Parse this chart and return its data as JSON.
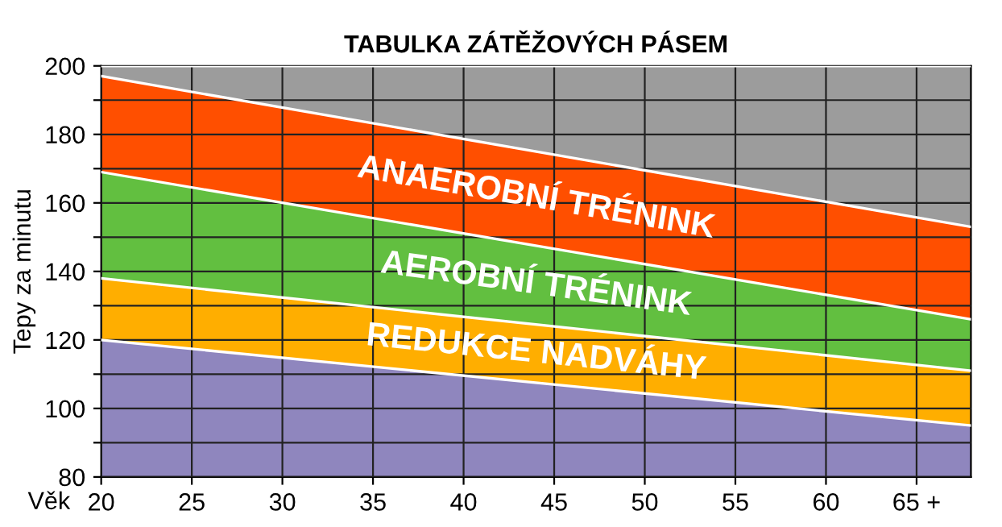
{
  "chart_data": {
    "type": "area",
    "title": "TABULKA ZÁTĚŽOVÝCH PÁSEM",
    "xlabel": "Věk",
    "ylabel": "Tepy za minutu",
    "legend": false,
    "grid": true,
    "xlim": [
      20,
      68
    ],
    "xticks": [
      20,
      25,
      30,
      35,
      40,
      45,
      50,
      55,
      60,
      {
        "value": 65,
        "label": "65 +"
      }
    ],
    "ylim": [
      80,
      200
    ],
    "yticks": [
      80,
      {
        "value": 90,
        "label": null
      },
      100,
      {
        "value": 110,
        "label": null
      },
      120,
      {
        "value": 130,
        "label": null
      },
      140,
      {
        "value": 150,
        "label": null
      },
      160,
      {
        "value": 170,
        "label": null
      },
      180,
      {
        "value": 190,
        "label": null
      },
      200
    ],
    "x": [
      20,
      68
    ],
    "series": [
      {
        "name": null,
        "color": "#8f86be",
        "values": [
          120,
          95
        ]
      },
      {
        "name": "REDUKCE NADVÁHY",
        "color": "#ffae00",
        "values": [
          138,
          111
        ]
      },
      {
        "name": "AEROBNÍ TRÉNINK",
        "color": "#62bf40",
        "values": [
          169,
          126
        ]
      },
      {
        "name": "ANAEROBNÍ TRÉNINK",
        "color": "#ff4f00",
        "values": [
          197,
          153
        ]
      },
      {
        "name": null,
        "color": "#9c9c9c",
        "values": [
          200,
          200
        ]
      }
    ]
  }
}
